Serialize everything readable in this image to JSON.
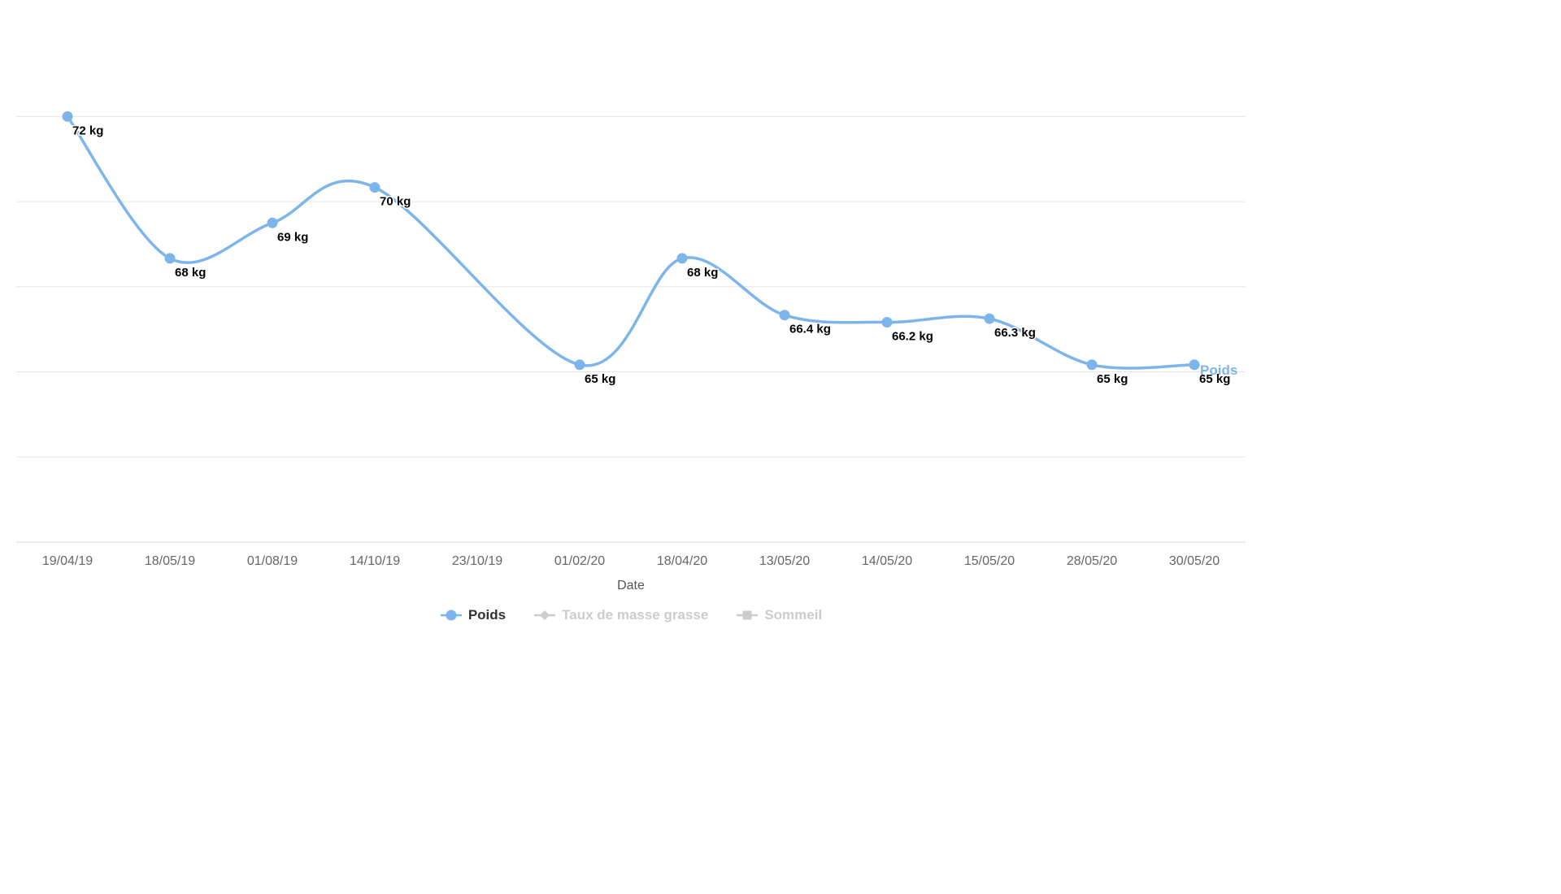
{
  "chart_data": {
    "type": "line",
    "subtype": "spline",
    "title": "",
    "xlabel": "Date",
    "ylabel": "",
    "ylim": [
      60,
      72.65
    ],
    "grid": "horizontal",
    "gridline_values": [
      72,
      69.6,
      67.2,
      64.8,
      62.4
    ],
    "legend_position": "bottom",
    "categories": [
      "19/04/19",
      "18/05/19",
      "01/08/19",
      "14/10/19",
      "23/10/19",
      "01/02/20",
      "18/04/20",
      "13/05/20",
      "14/05/20",
      "15/05/20",
      "28/05/20",
      "30/05/20"
    ],
    "series": [
      {
        "name": "Poids",
        "color": "#7cb5ec",
        "marker": "circle",
        "visible": true,
        "unit": "kg",
        "values": [
          72,
          68,
          69,
          70,
          null,
          65,
          68,
          66.4,
          66.2,
          66.3,
          65,
          65
        ],
        "end_label": "Poids"
      },
      {
        "name": "Taux de masse grasse",
        "color": "#cccccc",
        "marker": "diamond",
        "visible": false,
        "unit": "",
        "values": []
      },
      {
        "name": "Sommeil",
        "color": "#cccccc",
        "marker": "square",
        "visible": false,
        "unit": "",
        "values": []
      }
    ]
  },
  "colors": {
    "line": "#7cb5ec",
    "grid": "#e6e6e6",
    "axis_line": "#ccd6eb",
    "tick_label": "#666666",
    "axis_title": "#555555",
    "data_label": "#000000",
    "legend_active": "#333333",
    "legend_hidden": "#cccccc"
  }
}
